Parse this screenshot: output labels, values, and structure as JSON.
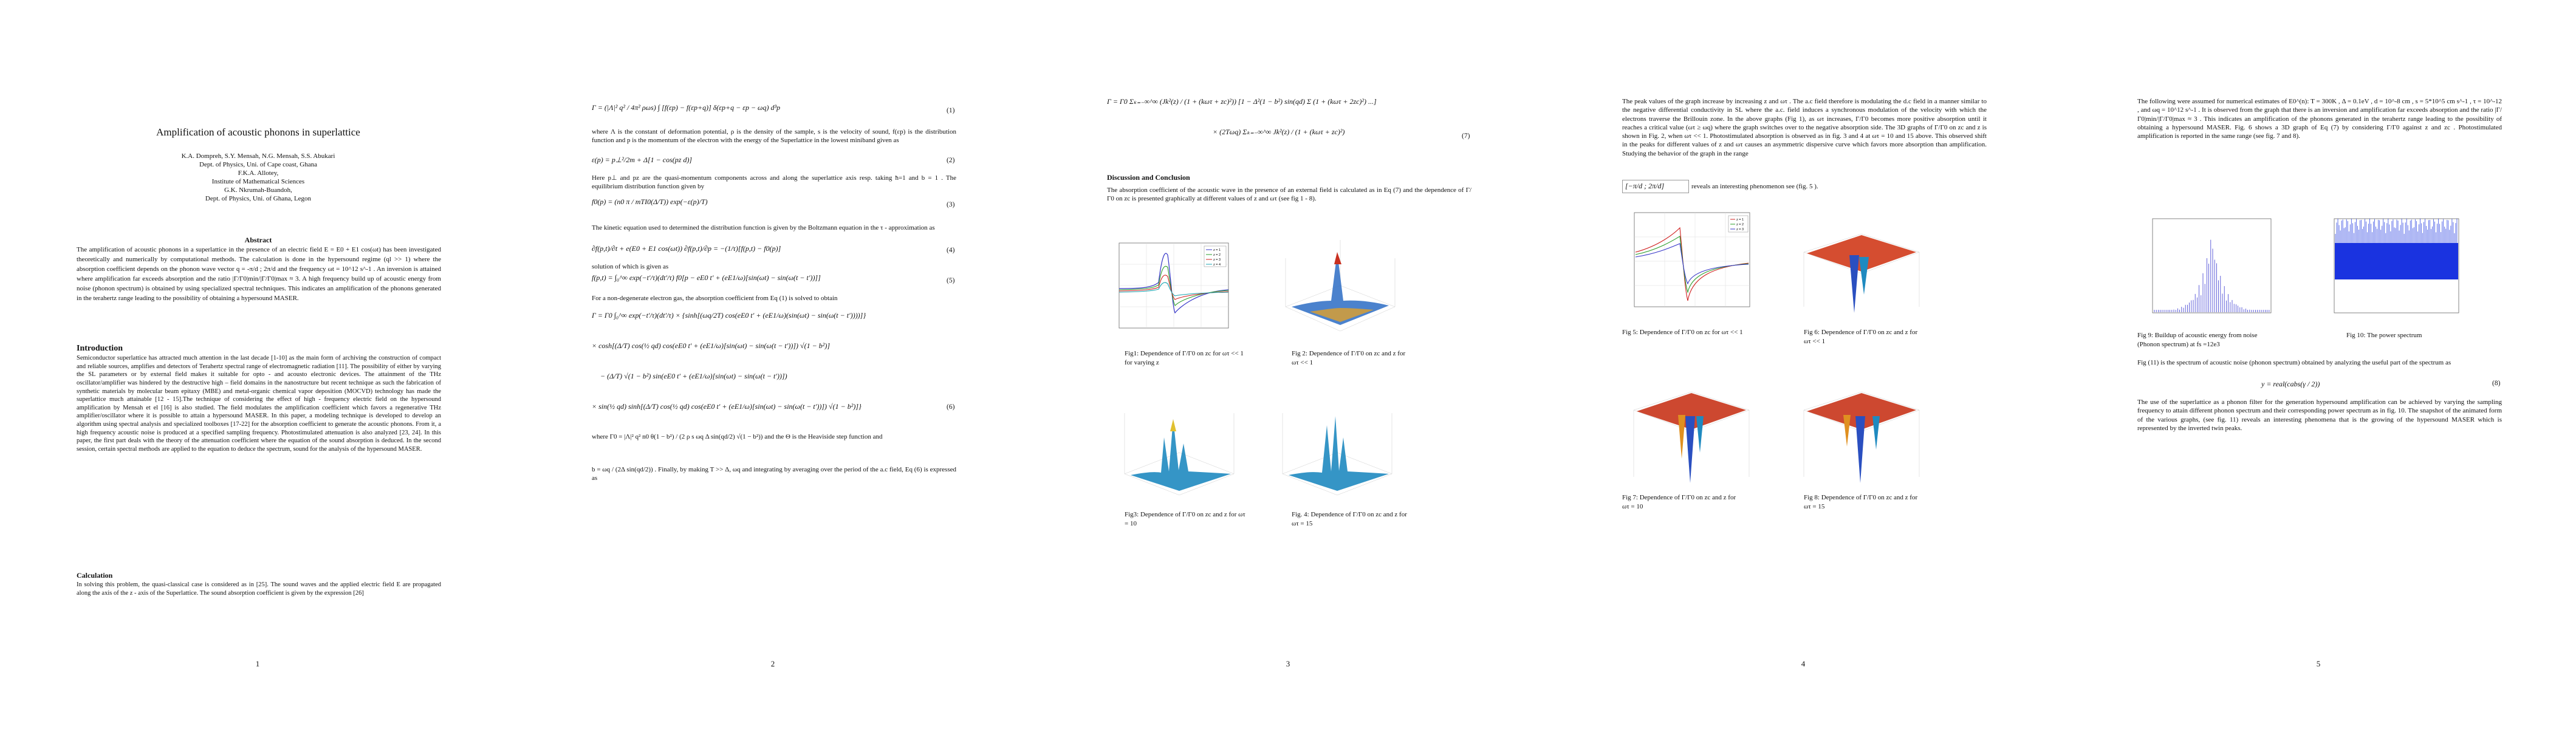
{
  "p1": {
    "title": "Amplification of acoustic phonons in  superlattice",
    "authors": [
      "K.A. Dompreh, S.Y. Mensah, N.G. Mensah, S.S. Abukari",
      "Dept. of Physics, Uni. of Cape coast, Ghana",
      "F.K.A. Allotey,",
      "Institute of Mathematical Sciences",
      "G.K. Nkrumah-Buandoh,",
      "Dept. of Physics, Uni. of Ghana, Legon"
    ],
    "abstract_head": "Abstract",
    "abstract": "The amplification of acoustic phonons in a superlattice in the presence of an electric field E = E0 + E1 cos(ωt) has been investigated theoretically and numerically by computational methods. The calculation is done in the hypersound regime (ql >> 1) where the absorption coefficient depends on the phonon wave vector q = -π/d ; 2π/d and the frequency ωt = 10^12 s^-1 . An inversion is attained where amplification far exceeds absorption and the ratio |Γ/Γ0|min/|Γ/Γ0|max ≈ 3. A high frequency build up of acoustic energy from noise (phonon spectrum) is obtained by using specialized spectral techniques. This indicates an amplification of the phonons generated in the terahertz range leading to the possibility of obtaining a hypersound MASER.",
    "intro_head": "Introduction",
    "intro": "Semiconductor superlattice has attracted much attention in the last decade [1-10] as the main form of archiving the construction of compact and reliable sources, amplifies and detectors of Terahertz spectral range of electromagnetic radiation [11]. The possibility of either by varying the SL parameters or by external field makes it suitable for opto - and acousto electronic devices. The attainment of the THz oscillator/amplifier was hindered by the destructive high – field domains in the nanostructure but recent technique as such the fabrication of synthetic materials by molecular beam epitaxy (MBE) and metal-organic chemical vapor deposition (MOCVD) technology has made the superlattice much attainable [12 - 15].The technique of considering the effect of high - frequency electric field on the hypersound amplification by Mensah et el [16] is also studied. The field modulates the amplification coefficient which favors a regenerative THz amplifier/oscillator where it is possible to attain a hypersound MASER. In this paper, a modeling technique is developed to develop an algorithm using spectral analysis and specialized toolboxes [17-22] for the absorption coefficient to generate the acoustic phonons. From it, a high frequency acoustic noise is produced at a specified sampling frequency. Photostimulated attenuation is also analyzed [23, 24]. In this paper, the first part deals with the theory of the attenuation coefficient where the equation of the sound absorption is deduced. In the second session, certain spectral methods are applied to the equation to deduce the spectrum, sound for the analysis of the hypersound MASER.",
    "calc_head": "Calculation",
    "calc": "In solving this problem, the quasi-classical case is considered as in [25]. The sound waves and the applied electric field E are propagated along the axis of the z - axis of the Superlattice. The sound absorption coefficient is given by the expression [26]",
    "page": "1"
  },
  "p2": {
    "eq1": "Γ = (|Λ|² q² / 4π² ρωs) ∫ [f(εp) − f(εp+q)] δ(εp+q − εp − ωq) d³p",
    "eq1_no": "(1)",
    "t1": "where Λ is the constant of deformation potential, ρ is the density of the sample, s is the velocity of sound, f(εp) is the distribution function and p is the momentum of the electron with the energy of the Superlattice in the lowest miniband given as",
    "eq2": "ε(p) = p⊥²/2m + Δ[1 − cos(pz d)]",
    "eq2_no": "(2)",
    "t2": "Here p⊥ and pz are the quasi-momentum components across and along the superlattice axis resp. taking ħ=1 and b = 1 . The equilibrium distribution function given by",
    "eq3": "f0(p) = (n0 π / mTI0(Δ/T)) exp(−ε(p)/T)",
    "eq3_no": "(3)",
    "t3": "The kinetic equation used to determined the distribution function is given by the Boltzmann equation in the τ - approximation as",
    "eq4": "∂f(p,t)/∂t + e(E0 + E1 cos(ωt)) ∂f(p,t)/∂p = −(1/τ)[f(p,t) − f0(p)]",
    "eq4_no": "(4)",
    "t4": "solution of which is given as",
    "eq5": "f(p,t) = ∫₀^∞ exp(−t′/τ)(dt′/τ) f0[p − eE0 t′ + (eE1/ω)[sin(ωt) − sin(ω(t − t′))]]",
    "eq5_no": "(5)",
    "t5": "For a non-degenerate electron gas, the absorption coefficient from Eq (1) is solved to obtain",
    "eq6a": "Γ = Γ0 ∫₀^∞ exp(−t′/τ)(dt′/τ) × {sinh[(ωq/2T) cos(eE0 t′ + (eE1/ω)(sin(ωt) − sin(ω(t − t′))))]}",
    "eq6b": "× cosh[(Δ/T) cos(½ qd) cos(eE0 t′ + (eE1/ω)[sin(ωt) − sin(ω(t − t′))]) √(1 − b²)]",
    "eq6c": "− (Δ/T) √(1 − b²) sin(eE0 t′ + (eE1/ω)[sin(ωt) − sin(ω(t − t′))])",
    "eq6d": "× sin(½ qd) sinh[(Δ/T) cos(½ qd) cos(eE0 t′ + (eE1/ω)[sin(ωt) − sin(ω(t − t′))]) √(1 − b²)]}",
    "eq6_no": "(6)",
    "t6": "where Γ0 = |Λ|² q² n0 θ(1 − b²) / (2 ρ s ωq Δ sin(qd/2) √(1 − b²)) and the Θ is the Heaviside step function and",
    "t7": "b = ωq / (2Δ sin(qd/2)) . Finally, by making T >> Δ, ωq and integrating by averaging over the period of the a.c field, Eq (6) is expressed as",
    "page": "2"
  },
  "p3": {
    "eq7a": "Γ = Γ0 Σₖ₌₋∞^∞ (Jk²(z) / (1 + (kωτ + zc)²)) [1 − Δ²(1 − b²) sin(qd) Σ (1 + (kωτ + 2zc)²) ...]",
    "eq7b": "× (2Tωq) Σₖ₌₋∞^∞ Jk²(z) / (1 + (kωτ + zc)²)",
    "eq7_no": "(7)",
    "disc_head": "Discussion and Conclusion",
    "disc": "The absorption coefficient of the acoustic wave in the presence of an external field is calculated as in Eq (7) and the dependence of Γ/Γ0 on zc is presented graphically at different values of z and ωτ (see fig 1 - 8).",
    "fig1_cap": "Fig1: Dependence of Γ/Γ0 on zc for ωτ << 1 for varying z",
    "fig2_cap": "Fig 2: Dependence of Γ/Γ0 on zc and z for ωτ << 1",
    "fig3_cap": "Fig3: Dependence of Γ/Γ0 on zc and z for ωτ = 10",
    "fig4_cap": "Fig. 4: Dependence of Γ/Γ0 on zc and z for ωτ = 15",
    "legend": [
      "z = 1",
      "z = 2",
      "z = 3",
      "z = 4"
    ],
    "page": "3"
  },
  "p4": {
    "t1": "The peak values of the graph increase by increasing z and ωτ . The a.c field therefore is modulating the d.c field in a manner similar to the negative differential conductivity in SL where the a.c. field induces a synchronous modulation of the velocity with which the electrons traverse the Brillouin zone. In the above graphs (Fig 1), as ωτ increases, Γ/Γ0 becomes more positive absorption until it reaches a critical value (ωτ ≥ ωq) where the graph switches over to the negative absorption side. The 3D graphs of Γ/Γ0 on zc and z is shown in Fig. 2, when ωτ << 1. Photostimulated absorption is observed as in fig. 3 and 4 at ωτ = 10 and 15 above. This observed shift in the peaks for different values of z and ωτ causes an asymmetric dispersive curve which favors more absorption than amplification. Studying the behavior of the graph in the range",
    "range": "[−π/d ; 2π/d]",
    "t2": "reveals an interesting phenomenon see (fig. 5 ).",
    "fig5_cap": "Fig 5: Dependence of Γ/Γ0 on zc for ωτ << 1",
    "fig6_cap": "Fig 6: Dependence of Γ/Γ0 on zc and z for ωτ << 1",
    "fig7_cap": "Fig 7: Dependence of Γ/Γ0 on zc and z for ωτ = 10",
    "fig8_cap": "Fig 8: Dependence of Γ/Γ0 on zc and z for ωτ = 15",
    "legend": [
      "z = 1",
      "z = 2",
      "z = 3"
    ],
    "page": "4"
  },
  "p5": {
    "t1": "The following were assumed for numerical estimates of E0^(n): T = 300K , Δ = 0.1eV , d = 10^-8 cm , s = 5*10^5 cm s^-1 , τ = 10^-12 , and ωq = 10^12 s^-1 . It is observed from the graph that there is an inversion and amplification far exceeds absorption and the ratio |Γ/Γ0|min/|Γ/Γ0|max ≈ 3 . This indicates an amplification of the phonons generated in the terahertz range leading to the possibility of obtaining a hypersound MASER. Fig. 6 shows a 3D graph of Eq (7) by considering Γ/Γ0 against z and zc . Photostimulated amplification is reported in the same range (see fig. 7 and 8).",
    "fig9_cap": "Fig 9: Buildup of acoustic energy from noise (Phonon spectrum) at fs =12e3",
    "fig10_cap": "Fig 10: The power spectrum",
    "t2": "Fig (11) is the spectrum of acoustic noise (phonon spectrum) obtained by analyzing the useful part of the spectrum as",
    "eq8": "y = real(cabs(γ / 2))",
    "eq8_no": "(8)",
    "t3": "The use of the superlattice as a phonon filter for the generation hypersound amplification can be achieved by varying the sampling frequency to attain different phonon spectrum and their corresponding power spectrum as in fig. 10. The snapshot of the animated form of the various graphs, (see fig. 11) reveals an interesting phenomena that is the growing of the hypersound MASER which is represented by the inverted twin peaks.",
    "page": "5"
  }
}
